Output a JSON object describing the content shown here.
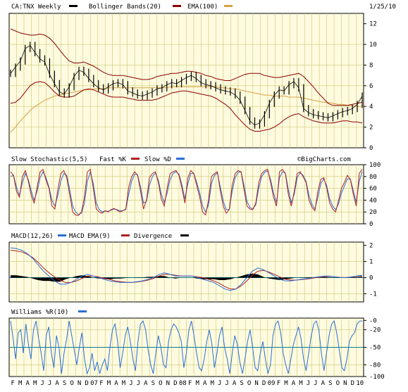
{
  "header": {
    "symbol": "CA:TNX Weekly",
    "overlay1": "Bollinger Bands(20)",
    "overlay2": "EMA(100)",
    "date": "1/25/10",
    "watermark": "©BigCharts.com"
  },
  "colors": {
    "price": "#000000",
    "bollinger": "#8b0000",
    "ema": "#d8a040",
    "fast": "#b02020",
    "slow": "#2a6fd6",
    "macd": "#2a6fd6",
    "macd_ema": "#b02020",
    "divergence": "#000000",
    "williams": "#2a6fd6",
    "panel_bg": "#fffbe0",
    "grid": "#c8c870",
    "zero_line": "#0c7d8a"
  },
  "panels": {
    "stochastic": {
      "title": "Slow Stochastic(5,5)",
      "fast_label": "Fast %K",
      "slow_label": "Slow %D"
    },
    "macd": {
      "title": "MACD(12,26)",
      "macd_label": "MACD",
      "ema_label": "EMA(9)",
      "div_label": "Divergence"
    },
    "williams": {
      "title": "Williams %R(10)"
    }
  },
  "chart_data": [
    {
      "type": "line",
      "panel": "price",
      "title": "CA:TNX Weekly",
      "y_ticks": [
        "12",
        "10",
        "8",
        "6",
        "4",
        "2",
        "0"
      ],
      "ylim": [
        0,
        13
      ],
      "x_labels": [
        "F",
        "M",
        "A",
        "M",
        "J",
        "J",
        "A",
        "S",
        "O",
        "N",
        "D",
        "07",
        "F",
        "M",
        "A",
        "M",
        "J",
        "J",
        "A",
        "S",
        "O",
        "N",
        "D",
        "08",
        "F",
        "M",
        "A",
        "M",
        "J",
        "J",
        "A",
        "S",
        "O",
        "N",
        "D",
        "09",
        "F",
        "M",
        "A",
        "M",
        "J",
        "J",
        "A",
        "S",
        "O",
        "N",
        "D",
        "10"
      ],
      "series": [
        {
          "name": "CA:TNX Weekly",
          "values": [
            7.2,
            7.8,
            8.4,
            9.6,
            9.9,
            9.2,
            8.6,
            8.3,
            7.1,
            6.2,
            5.4,
            5.2,
            5.9,
            6.9,
            7.5,
            7.3,
            6.7,
            6.2,
            5.8,
            5.6,
            5.9,
            6.2,
            6.3,
            6.1,
            5.5,
            5.3,
            5.1,
            5.0,
            5.2,
            5.4,
            5.7,
            5.8,
            6.1,
            6.3,
            6.2,
            6.5,
            6.8,
            7.0,
            6.7,
            6.3,
            6.1,
            6.0,
            5.8,
            5.6,
            5.5,
            5.4,
            5.1,
            4.6,
            3.6,
            2.6,
            2.2,
            2.4,
            3.2,
            4.3,
            5.1,
            5.6,
            5.5,
            6.1,
            6.4,
            5.8,
            3.8,
            3.4,
            3.2,
            3.1,
            3.0,
            2.9,
            3.1,
            3.3,
            3.5,
            3.6,
            3.8,
            4.2,
            5.0
          ]
        },
        {
          "name": "Bollinger Bands(20)",
          "values": [
            11.5,
            11.3,
            11.1,
            11.0,
            10.9,
            10.9,
            11.0,
            10.9,
            10.6,
            10.1,
            9.5,
            8.9,
            8.4,
            8.2,
            8.2,
            8.3,
            8.1,
            7.9,
            7.6,
            7.3,
            7.1,
            7.0,
            7.0,
            7.0,
            6.9,
            6.8,
            6.7,
            6.6,
            6.6,
            6.7,
            6.9,
            7.0,
            7.1,
            7.2,
            7.2,
            7.3,
            7.4,
            7.4,
            7.3,
            7.2,
            7.0,
            6.9,
            6.7,
            6.6,
            6.5,
            6.5,
            6.7,
            6.9,
            7.1,
            7.2,
            7.2,
            7.2,
            7.0,
            6.9,
            6.8,
            6.8,
            6.9,
            7.0,
            7.1,
            7.2,
            6.9,
            6.4,
            5.9,
            5.3,
            4.8,
            4.3,
            4.1,
            4.1,
            4.1,
            4.1,
            4.2,
            4.3,
            4.4
          ]
        },
        {
          "name": "Bollinger Bands(20) lower",
          "values": [
            4.3,
            4.4,
            4.8,
            5.4,
            6.0,
            6.3,
            6.4,
            6.3,
            5.9,
            5.4,
            5.0,
            4.9,
            4.9,
            5.0,
            5.3,
            5.6,
            5.7,
            5.6,
            5.4,
            5.2,
            5.0,
            4.9,
            4.9,
            4.9,
            4.8,
            4.7,
            4.6,
            4.6,
            4.6,
            4.6,
            4.7,
            4.9,
            5.1,
            5.3,
            5.4,
            5.5,
            5.5,
            5.4,
            5.3,
            5.2,
            5.1,
            5.0,
            4.8,
            4.5,
            4.2,
            3.8,
            3.2,
            2.7,
            2.2,
            1.8,
            1.6,
            1.6,
            1.7,
            1.8,
            2.0,
            2.3,
            2.7,
            3.0,
            3.2,
            3.3,
            3.0,
            2.8,
            2.6,
            2.5,
            2.4,
            2.4,
            2.4,
            2.5,
            2.6,
            2.6,
            2.5,
            2.5,
            2.4
          ]
        },
        {
          "name": "EMA(100)",
          "values": [
            1.5,
            2.0,
            2.6,
            3.1,
            3.6,
            4.0,
            4.3,
            4.6,
            4.8,
            5.0,
            5.1,
            5.2,
            5.3,
            5.4,
            5.5,
            5.6,
            5.6,
            5.7,
            5.7,
            5.7,
            5.8,
            5.8,
            5.8,
            5.8,
            5.8,
            5.8,
            5.8,
            5.8,
            5.8,
            5.8,
            5.8,
            5.8,
            5.8,
            5.9,
            5.9,
            5.9,
            5.9,
            5.9,
            5.9,
            5.9,
            5.9,
            5.9,
            5.9,
            5.8,
            5.8,
            5.7,
            5.7,
            5.6,
            5.5,
            5.4,
            5.3,
            5.2,
            5.1,
            5.1,
            5.0,
            5.0,
            5.0,
            4.9,
            4.9,
            4.9,
            4.8,
            4.7,
            4.6,
            4.5,
            4.4,
            4.4,
            4.3,
            4.2,
            4.2,
            4.1,
            4.1,
            4.0,
            4.0
          ]
        }
      ]
    },
    {
      "type": "line",
      "panel": "stochastic",
      "title": "Slow Stochastic(5,5)",
      "y_ticks": [
        "100",
        "80",
        "60",
        "40",
        "20",
        "0"
      ],
      "ylim": [
        0,
        100
      ],
      "series": [
        {
          "name": "Fast %K",
          "values": [
            88,
            82,
            55,
            45,
            80,
            90,
            72,
            48,
            35,
            62,
            88,
            92,
            74,
            60,
            30,
            25,
            58,
            85,
            90,
            78,
            50,
            20,
            15,
            14,
            20,
            45,
            88,
            92,
            60,
            25,
            20,
            18,
            22,
            20,
            24,
            26,
            23,
            20,
            22,
            25,
            62,
            80,
            88,
            82,
            55,
            25,
            40,
            78,
            85,
            88,
            70,
            42,
            30,
            60,
            85,
            88,
            90,
            82,
            60,
            35,
            78,
            90,
            85,
            65,
            45,
            20,
            15,
            40,
            80,
            85,
            88,
            55,
            30,
            18,
            24,
            65,
            85,
            90,
            88,
            58,
            30,
            25,
            24,
            35,
            70,
            85,
            90,
            92,
            70,
            45,
            30,
            88,
            92,
            85,
            50,
            30,
            55,
            85,
            88,
            80,
            70,
            40,
            28,
            22,
            55,
            75,
            78,
            60,
            35,
            25,
            20,
            40,
            60,
            70,
            82,
            75,
            50,
            30,
            85,
            92
          ]
        },
        {
          "name": "Slow %D",
          "values": [
            80,
            82,
            62,
            48,
            70,
            85,
            75,
            55,
            40,
            55,
            78,
            88,
            78,
            62,
            40,
            30,
            48,
            72,
            85,
            82,
            58,
            30,
            20,
            16,
            18,
            35,
            72,
            88,
            68,
            35,
            24,
            20,
            22,
            21,
            23,
            25,
            24,
            22,
            22,
            24,
            50,
            72,
            84,
            83,
            62,
            35,
            38,
            65,
            80,
            86,
            74,
            50,
            36,
            52,
            75,
            85,
            88,
            84,
            66,
            42,
            68,
            85,
            85,
            70,
            52,
            30,
            20,
            32,
            68,
            82,
            86,
            62,
            38,
            24,
            24,
            55,
            78,
            87,
            88,
            65,
            38,
            28,
            25,
            32,
            60,
            80,
            87,
            90,
            75,
            52,
            36,
            78,
            88,
            86,
            58,
            36,
            50,
            78,
            86,
            82,
            72,
            48,
            33,
            25,
            45,
            68,
            76,
            64,
            42,
            30,
            24,
            34,
            52,
            64,
            76,
            76,
            56,
            36,
            72,
            88
          ]
        }
      ]
    },
    {
      "type": "line",
      "panel": "macd",
      "title": "MACD(12,26)",
      "y_ticks": [
        "2",
        "1",
        "0",
        "-1"
      ],
      "ylim": [
        -1.5,
        2.2
      ],
      "series": [
        {
          "name": "MACD",
          "values": [
            1.85,
            1.8,
            1.7,
            1.5,
            1.2,
            0.8,
            0.4,
            0.1,
            -0.2,
            -0.4,
            -0.4,
            -0.3,
            -0.1,
            0.1,
            0.2,
            0.1,
            0.0,
            -0.1,
            -0.2,
            -0.25,
            -0.3,
            -0.3,
            -0.3,
            -0.25,
            -0.2,
            -0.1,
            0.0,
            0.2,
            0.3,
            0.2,
            0.1,
            0.1,
            0.1,
            0.1,
            0.0,
            -0.1,
            -0.2,
            -0.3,
            -0.5,
            -0.7,
            -0.8,
            -0.7,
            -0.4,
            0.0,
            0.4,
            0.6,
            0.5,
            0.3,
            0.1,
            -0.1,
            -0.2,
            -0.2,
            -0.15,
            -0.1,
            -0.05,
            0.0,
            0.05,
            0.1,
            0.1,
            0.05,
            0.0,
            0.0,
            0.05,
            0.1,
            0.15
          ]
        },
        {
          "name": "EMA(9)",
          "values": [
            1.7,
            1.65,
            1.6,
            1.45,
            1.25,
            0.95,
            0.6,
            0.3,
            0.05,
            -0.15,
            -0.3,
            -0.3,
            -0.2,
            -0.05,
            0.1,
            0.1,
            0.05,
            -0.05,
            -0.1,
            -0.2,
            -0.25,
            -0.28,
            -0.3,
            -0.27,
            -0.22,
            -0.15,
            -0.05,
            0.1,
            0.2,
            0.2,
            0.15,
            0.1,
            0.1,
            0.1,
            0.05,
            0.0,
            -0.1,
            -0.2,
            -0.35,
            -0.55,
            -0.7,
            -0.7,
            -0.5,
            -0.2,
            0.15,
            0.4,
            0.45,
            0.35,
            0.2,
            0.05,
            -0.1,
            -0.15,
            -0.15,
            -0.12,
            -0.08,
            -0.03,
            0.02,
            0.05,
            0.08,
            0.05,
            0.02,
            0.01,
            0.03,
            0.07,
            0.1
          ]
        },
        {
          "name": "Divergence",
          "values": [
            0.15,
            0.15,
            0.1,
            0.05,
            -0.05,
            -0.15,
            -0.2,
            -0.2,
            -0.25,
            -0.25,
            -0.1,
            0.0,
            0.1,
            0.15,
            0.1,
            0.0,
            -0.05,
            -0.05,
            -0.1,
            -0.05,
            -0.05,
            -0.02,
            0.0,
            0.02,
            0.02,
            0.05,
            0.05,
            0.1,
            0.1,
            0.0,
            -0.05,
            0.0,
            0.0,
            0.0,
            -0.05,
            -0.1,
            -0.1,
            -0.1,
            -0.15,
            -0.15,
            -0.1,
            0.0,
            0.1,
            0.2,
            0.25,
            0.2,
            0.05,
            -0.05,
            -0.1,
            -0.15,
            -0.1,
            -0.05,
            0.0,
            0.02,
            0.03,
            0.03,
            0.03,
            0.05,
            0.02,
            0.0,
            -0.02,
            -0.01,
            0.02,
            0.03,
            0.05
          ]
        }
      ]
    },
    {
      "type": "line",
      "panel": "williams",
      "title": "Williams %R(10)",
      "y_ticks": [
        "-0",
        "-20",
        "-50",
        "-80",
        "-100"
      ],
      "ylim": [
        -100,
        0
      ],
      "series": [
        {
          "name": "Williams %R(10)",
          "values": [
            -5,
            -35,
            -70,
            -25,
            -20,
            -60,
            -10,
            -45,
            -70,
            -20,
            -5,
            -35,
            -60,
            -90,
            -30,
            -15,
            -60,
            -85,
            -30,
            -50,
            -95,
            -60,
            -35,
            -5,
            -30,
            -55,
            -80,
            -50,
            -25,
            -70,
            -95,
            -85,
            -60,
            -90,
            -75,
            -95,
            -80,
            -70,
            -90,
            -50,
            -20,
            -10,
            -40,
            -85,
            -60,
            -30,
            -15,
            -40,
            -70,
            -90,
            -40,
            -10,
            -5,
            -20,
            -55,
            -80,
            -95,
            -60,
            -30,
            -50,
            -80,
            -85,
            -40,
            -20,
            -10,
            -15,
            -25,
            -40,
            -85,
            -60,
            -20,
            -5,
            -30,
            -60,
            -85,
            -90,
            -70,
            -40,
            -20,
            -45,
            -85,
            -60,
            -30,
            -15,
            -50,
            -70,
            -95,
            -60,
            -30,
            -45,
            -75,
            -95,
            -70,
            -40,
            -20,
            -50,
            -85,
            -90,
            -60,
            -40,
            -70,
            -95,
            -80,
            -30,
            -10,
            -5,
            -25,
            -60,
            -80,
            -95,
            -70,
            -45,
            -30,
            -15,
            -35,
            -70,
            -90,
            -60,
            -30,
            -10,
            -5,
            -20,
            -60,
            -90,
            -60,
            -30,
            -10,
            -5,
            -25,
            -55,
            -85,
            -90,
            -70,
            -40,
            -30,
            -25,
            -10,
            -5,
            -5
          ]
        }
      ]
    }
  ]
}
